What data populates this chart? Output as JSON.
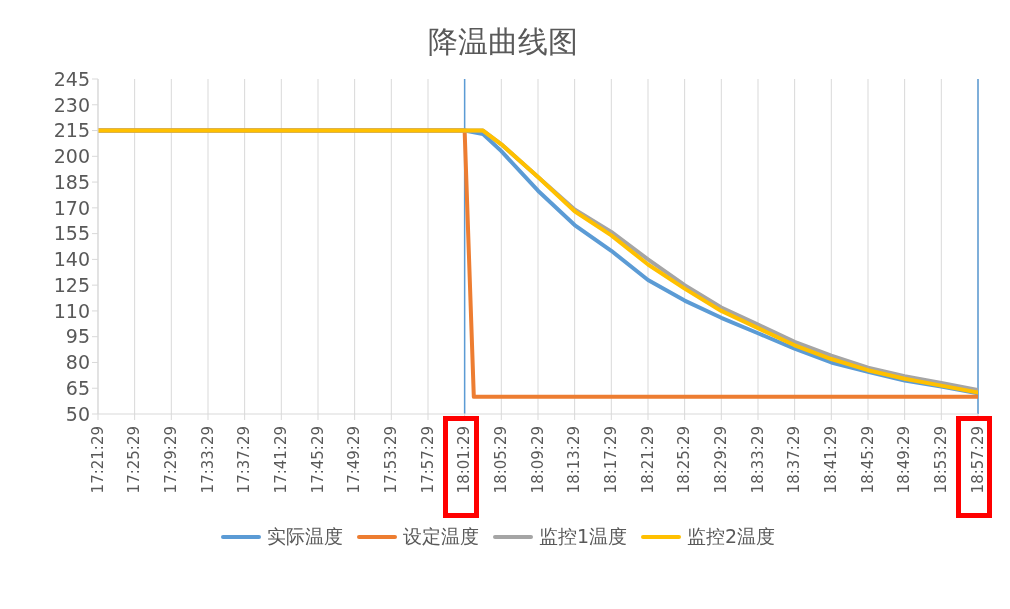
{
  "chart_data": {
    "type": "line",
    "title": "降温曲线图",
    "series": [
      {
        "name": "实际温度",
        "color": "#5b9bd5",
        "x": [
          17.3581,
          18.0247,
          18.0581,
          18.0914,
          18.1581,
          18.2247,
          18.2914,
          18.3581,
          18.4247,
          18.4914,
          18.5581,
          18.6247,
          18.6914,
          18.7581,
          18.8247,
          18.8914,
          18.9581
        ],
        "values": [
          215,
          215,
          213,
          203,
          180,
          160,
          145,
          128,
          116,
          106,
          97,
          88,
          80,
          74.5,
          69.5,
          66,
          62
        ]
      },
      {
        "name": "设定温度",
        "color": "#ed7d31",
        "x": [
          17.3581,
          18.0247,
          18.0414,
          18.9581
        ],
        "values": [
          215,
          215,
          60,
          60
        ]
      },
      {
        "name": "监控1温度",
        "color": "#a5a5a5",
        "x": [
          17.3581,
          18.0247,
          18.0581,
          18.0914,
          18.1581,
          18.2247,
          18.2914,
          18.3581,
          18.4247,
          18.4914,
          18.5581,
          18.6247,
          18.6914,
          18.7581,
          18.8247,
          18.8914,
          18.9581
        ],
        "values": [
          215,
          215,
          215,
          207,
          188,
          169,
          156,
          140,
          125,
          112,
          102,
          92,
          84,
          77,
          72,
          68,
          64
        ]
      },
      {
        "name": "监控2温度",
        "color": "#ffc000",
        "x": [
          17.3581,
          18.0247,
          18.0581,
          18.0914,
          18.1581,
          18.2247,
          18.2914,
          18.3581,
          18.4247,
          18.4914,
          18.5581,
          18.6247,
          18.6914,
          18.7581,
          18.8247,
          18.8914,
          18.9581
        ],
        "values": [
          215,
          215,
          215,
          207,
          188,
          168,
          154,
          137,
          123,
          110,
          100,
          90,
          82,
          75.5,
          70.5,
          66.5,
          62.5
        ]
      }
    ],
    "xlim": [
      17.3581,
      18.9581
    ],
    "xticks": [
      {
        "value": 17.3581,
        "label": "17:21:29"
      },
      {
        "value": 17.4247,
        "label": "17:25:29"
      },
      {
        "value": 17.4914,
        "label": "17:29:29"
      },
      {
        "value": 17.5581,
        "label": "17:33:29"
      },
      {
        "value": 17.6247,
        "label": "17:37:29"
      },
      {
        "value": 17.6914,
        "label": "17:41:29"
      },
      {
        "value": 17.7581,
        "label": "17:45:29"
      },
      {
        "value": 17.8247,
        "label": "17:49:29"
      },
      {
        "value": 17.8914,
        "label": "17:53:29"
      },
      {
        "value": 17.9581,
        "label": "17:57:29"
      },
      {
        "value": 18.0247,
        "label": "18:01:29"
      },
      {
        "value": 18.0914,
        "label": "18:05:29"
      },
      {
        "value": 18.1581,
        "label": "18:09:29"
      },
      {
        "value": 18.2247,
        "label": "18:13:29"
      },
      {
        "value": 18.2914,
        "label": "18:17:29"
      },
      {
        "value": 18.3581,
        "label": "18:21:29"
      },
      {
        "value": 18.4247,
        "label": "18:25:29"
      },
      {
        "value": 18.4914,
        "label": "18:29:29"
      },
      {
        "value": 18.5581,
        "label": "18:33:29"
      },
      {
        "value": 18.6247,
        "label": "18:37:29"
      },
      {
        "value": 18.6914,
        "label": "18:41:29"
      },
      {
        "value": 18.7581,
        "label": "18:45:29"
      },
      {
        "value": 18.8247,
        "label": "18:49:29"
      },
      {
        "value": 18.8914,
        "label": "18:53:29"
      },
      {
        "value": 18.9581,
        "label": "18:57:29"
      }
    ],
    "ylim": [
      50,
      245
    ],
    "yticks": [
      50,
      65,
      80,
      95,
      110,
      125,
      140,
      155,
      170,
      185,
      200,
      215,
      230,
      245
    ],
    "ref_lines": [
      {
        "axis": "x",
        "value": 18.0247,
        "color": "#5b9bd5"
      },
      {
        "axis": "x",
        "value": 18.9581,
        "color": "#5b9bd5"
      }
    ],
    "grid": "x",
    "legend": "bottom",
    "marker": "none",
    "line_style": "solid"
  }
}
